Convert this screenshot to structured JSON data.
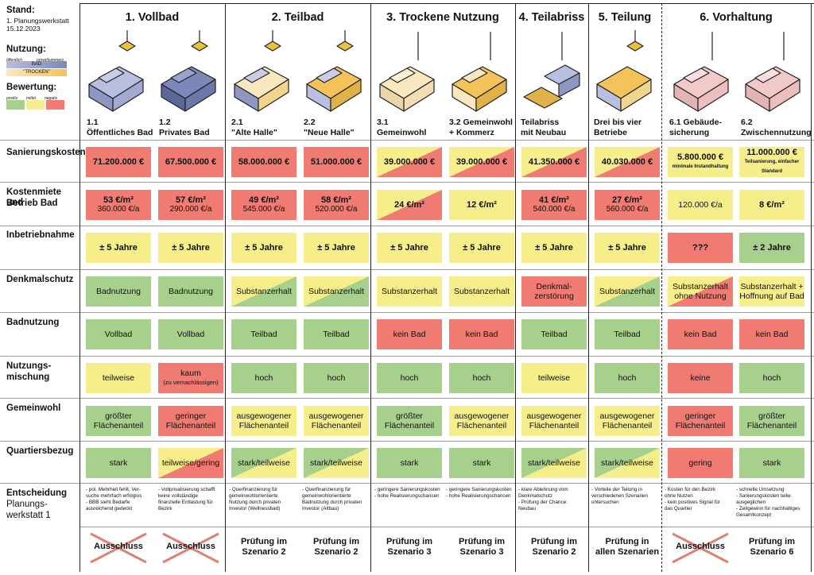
{
  "side": {
    "stand_title": "Stand:",
    "stand_line1": "1. Planungswerkstatt",
    "stand_line2": "15.12.2023",
    "nutzung_title": "Nutzung:",
    "nutzung_oeffentlich": "öffentlich",
    "nutzung_privat": "privat/kommerz.",
    "nutzung_bad": "BAD",
    "nutzung_trocken": "\"TROCKEN\"",
    "bewertung_title": "Bewertung:",
    "bewertung_pos": "positiv",
    "bewertung_mid": "mittel",
    "bewertung_neg": "negativ"
  },
  "row_labels": {
    "r1": "Sanierungskosten",
    "r2a": "Kostenmiete und",
    "r2b": "Betrieb Bad",
    "r3": "Inbetriebnahme",
    "r4": "Denkmalschutz",
    "r5": "Badnutzung",
    "r6a": "Nutzungs-",
    "r6b": "mischung",
    "r7": "Gemeinwohl",
    "r8": "Quartiersbezug",
    "r9a": "Entscheidung",
    "r9b": "Planungs-",
    "r9c": "werkstatt 1"
  },
  "groups": {
    "g1": "1. Vollbad",
    "g2": "2. Teilbad",
    "g3": "3. Trockene Nutzung",
    "g4": "4. Teilabriss",
    "g5": "5. Teilung",
    "g6": "6. Vorhaltung"
  },
  "sub": {
    "c1a": "1.1",
    "c1b": "Öffentliches Bad",
    "c2a": "1.2",
    "c2b": "Privates Bad",
    "c3a": "2.1",
    "c3b": "\"Alte Halle\"",
    "c4a": "2.2",
    "c4b": "\"Neue Halle\"",
    "c5a": "3.1",
    "c5b": "Gemeinwohl",
    "c6a": "3.2 Gemeinwohl",
    "c6b": "+ Kommerz",
    "c7a": "Teilabriss",
    "c7b": "mit Neubau",
    "c8a": "Drei bis vier",
    "c8b": "Betriebe",
    "c9a": "6.1 Gebäude-",
    "c9b": "sicherung",
    "c10a": "6.2",
    "c10b": "Zwischennutzung"
  },
  "costs": {
    "c1": "71.200.000 €",
    "c2": "67.500.000 €",
    "c3": "58.000.000 €",
    "c4": "51.000.000 €",
    "c5": "39.000.000 €",
    "c6": "39.000.000 €",
    "c7": "41.350.000 €",
    "c8": "40.030.000 €",
    "c9": "5.800.000 €",
    "c9_note": "minimale Instandhaltung",
    "c10": "11.000.000 €",
    "c10_note": "Teilsanierung, einfacher Standard"
  },
  "rent": {
    "c1": "53 €/m²",
    "c1b": "360.000 €/a",
    "c2": "57 €/m²",
    "c2b": "290.000 €/a",
    "c3": "49 €/m²",
    "c3b": "545.000 €/a",
    "c4": "58 €/m²",
    "c4b": "520.000 €/a",
    "c5": "24 €/m²",
    "c6": "12 €/m²",
    "c7": "41 €/m²",
    "c7b": "540.000 €/a",
    "c8": "27 €/m²",
    "c8b": "560.000 €/a",
    "c9": "120.000 €/a",
    "c10": "8 €/m²"
  },
  "start": {
    "c1": "± 5 Jahre",
    "c2": "± 5 Jahre",
    "c3": "± 5 Jahre",
    "c4": "± 5 Jahre",
    "c5": "± 5 Jahre",
    "c6": "± 5 Jahre",
    "c7": "± 5 Jahre",
    "c8": "± 5 Jahre",
    "c9": "???",
    "c10": "± 2 Jahre"
  },
  "denkmal": {
    "c1": "Badnutzung",
    "c2": "Badnutzung",
    "c3": "Substanzerhalt",
    "c4": "Substanzerhalt",
    "c5": "Substanzerhalt",
    "c6": "Substanzerhalt",
    "c7a": "Denkmal-",
    "c7b": "zerstörung",
    "c8": "Substanzerhalt",
    "c9a": "Substanzerhalt",
    "c9b": "ohne Nutzung",
    "c10a": "Substanzerhalt +",
    "c10b": "Hoffnung auf Bad"
  },
  "bad": {
    "c1": "Vollbad",
    "c2": "Vollbad",
    "c3": "Teilbad",
    "c4": "Teilbad",
    "c5": "kein Bad",
    "c6": "kein Bad",
    "c7": "Teilbad",
    "c8": "Teilbad",
    "c9": "kein Bad",
    "c10": "kein Bad"
  },
  "mix": {
    "c1": "teilweise",
    "c2": "kaum",
    "c2b": "(zu vernachlässigen)",
    "c3": "hoch",
    "c4": "hoch",
    "c5": "hoch",
    "c6": "hoch",
    "c7": "teilweise",
    "c8": "hoch",
    "c9": "keine",
    "c10": "hoch"
  },
  "wohl": {
    "c1a": "größter",
    "c1b": "Flächenanteil",
    "c2a": "geringer",
    "c2b": "Flächenanteil",
    "c3a": "ausgewogener",
    "c3b": "Flächenanteil",
    "c4a": "ausgewogener",
    "c4b": "Flächenanteil",
    "c5a": "größter",
    "c5b": "Flächenanteil",
    "c6a": "ausgewogener",
    "c6b": "Flächenanteil",
    "c7a": "ausgewogener",
    "c7b": "Flächenanteil",
    "c8a": "ausgewogener",
    "c8b": "Flächenanteil",
    "c9a": "geringer",
    "c9b": "Flächenanteil",
    "c10a": "größter",
    "c10b": "Flächenanteil"
  },
  "quart": {
    "c1": "stark",
    "c2": "teilweise/gering",
    "c3": "stark/teilweise",
    "c4": "stark/teilweise",
    "c5": "stark",
    "c6": "stark",
    "c7": "stark/teilweise",
    "c8": "stark/teilweise",
    "c9": "gering",
    "c10": "stark"
  },
  "notes": {
    "c1": [
      "- pol. Mehrheit fehlt, Ver-",
      "  suche mehrfach erfolglos",
      "- BBB sieht Bedarfe",
      "  ausreichend gedeckt"
    ],
    "c2": [
      "- Vollprivatisierung schafft",
      "  keine vollständige",
      "  finanzielle Entlastung für",
      "  Bezirk"
    ],
    "c3": [
      "- Querfinanzierung für",
      "  gemeinwohlorientierte",
      "  Nutzung durch privaten",
      "  Investor (Wellnessbad)"
    ],
    "c4": [
      "- Querfinanzierung für",
      "  gemeinwohlorientierte",
      "  Badnutzung durch privaten",
      "  Investor (Altbau)"
    ],
    "c5": [
      "- geringere Sanierungskosten",
      "- hohe Realisierungschancen"
    ],
    "c6": [
      "- geringere Sanierungskosten",
      "- hohe Realisierungschancen"
    ],
    "c7": [
      "- klare Ablehnung vom",
      "  Denkmalschutz",
      "- Prüfung der Chance:",
      "  Neubau"
    ],
    "c8": [
      "- Vorteile der Teilung in",
      "  verschiedenen Szenarien",
      "  untersuchen"
    ],
    "c9": [
      "- Kosten für den Bezirk",
      "  ohne Nutzen",
      "- kein positives Signal für",
      "  das Quartier"
    ],
    "c10": [
      "- schnelle Umsetzung",
      "- Sanierungskosten teilw.",
      "  ausgeglichen",
      "- Zeitgewinn für nachhaltiges",
      "  Gesamtkonzept"
    ]
  },
  "decision": {
    "c1": "Ausschluss",
    "c2": "Ausschluss",
    "c3a": "Prüfung im",
    "c3b": "Szenario 2",
    "c4a": "Prüfung im",
    "c4b": "Szenario 2",
    "c5a": "Prüfung im",
    "c5b": "Szenario 3",
    "c6a": "Prüfung im",
    "c6b": "Szenario 3",
    "c7a": "Prüfung im",
    "c7b": "Szenario 2",
    "c8a": "Prüfung in",
    "c8b": "allen Szenarien",
    "c9": "Ausschluss",
    "c10a": "Prüfung im",
    "c10b": "Szenario 6"
  },
  "colors": {
    "positive": "#a8d08d",
    "medium": "#f6ee8a",
    "negative": "#ef7b73",
    "bad_public": "#b9bfe0",
    "bad_private": "#7b88b8",
    "trocken_public": "#f9e7c0",
    "trocken_private": "#f3c35a",
    "vorhaltung": "#f2c9c9",
    "exclusion_cross": "#e08070"
  },
  "icons": [
    "building-axonometric-icon",
    "crane-icon",
    "cross-mark-icon"
  ]
}
